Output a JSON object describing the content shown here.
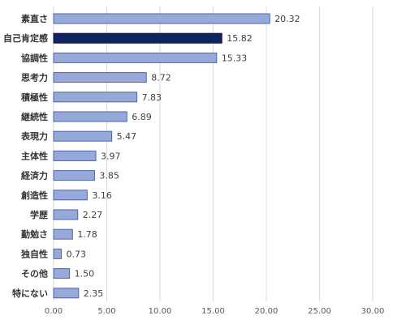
{
  "chart_data": {
    "type": "bar",
    "orientation": "horizontal",
    "categories": [
      "素直さ",
      "自己肯定感",
      "協調性",
      "思考力",
      "積極性",
      "継続性",
      "表現力",
      "主体性",
      "経済力",
      "創造性",
      "学歴",
      "勤勉さ",
      "独自性",
      "その他",
      "特にない"
    ],
    "values": [
      20.32,
      15.82,
      15.33,
      8.72,
      7.83,
      6.89,
      5.47,
      3.97,
      3.85,
      3.16,
      2.27,
      1.78,
      0.73,
      1.5,
      2.35
    ],
    "value_labels": [
      "20.32",
      "15.82",
      "15.33",
      "8.72",
      "7.83",
      "6.89",
      "5.47",
      "3.97",
      "3.85",
      "3.16",
      "2.27",
      "1.78",
      "0.73",
      "1.50",
      "2.35"
    ],
    "highlight_index": 1,
    "xlim": [
      0,
      30
    ],
    "xticks": [
      "0.00",
      "5.00",
      "10.00",
      "15.00",
      "20.00",
      "25.00",
      "30.00"
    ],
    "grid": "vertical",
    "title": "",
    "xlabel": "",
    "ylabel": "",
    "colors": {
      "bar_fill": "#97a9d8",
      "bar_stroke": "#4a66ac",
      "highlight_fill": "#0f2460",
      "highlight_stroke": "#0a1a4a",
      "grid": "#d9d9d9"
    }
  }
}
